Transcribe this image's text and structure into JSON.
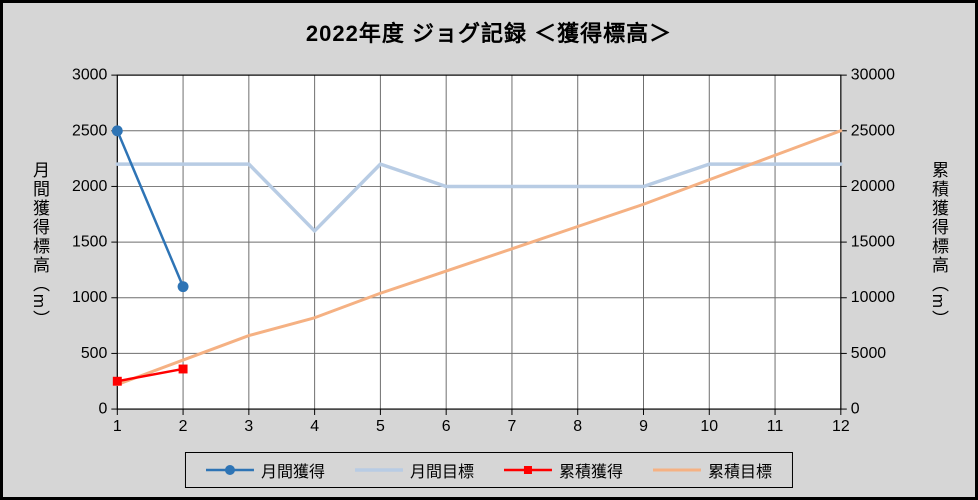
{
  "window": {
    "background": "#D6D6D6",
    "plot_background": "#FFFFFF",
    "border_color": "#000000"
  },
  "chart_data": {
    "type": "line",
    "title": "2022年度  ジョグ記録 ＜獲得標高＞",
    "x": [
      1,
      2,
      3,
      4,
      5,
      6,
      7,
      8,
      9,
      10,
      11,
      12
    ],
    "left_axis": {
      "label": "月間獲得標高（m）",
      "min": 0,
      "max": 3000,
      "step": 500
    },
    "right_axis": {
      "label": "累積獲得標高（m）",
      "min": 0,
      "max": 30000,
      "step": 5000
    },
    "grid": true,
    "legend_position": "bottom",
    "series": [
      {
        "id": "monthly-actual",
        "name": "月間獲得",
        "axis": "left",
        "color": "#2E74B5",
        "marker": "circle",
        "stroke_width": 2.5,
        "values": [
          2500,
          1100,
          null,
          null,
          null,
          null,
          null,
          null,
          null,
          null,
          null,
          null
        ]
      },
      {
        "id": "monthly-target",
        "name": "月間目標",
        "axis": "left",
        "color": "#B8CCE4",
        "marker": "none",
        "stroke_width": 3.5,
        "values": [
          2200,
          2200,
          2200,
          1600,
          2200,
          2000,
          2000,
          2000,
          2000,
          2200,
          2200,
          2200
        ]
      },
      {
        "id": "cumulative-actual",
        "name": "累積獲得",
        "axis": "right",
        "color": "#FF0000",
        "marker": "square",
        "stroke_width": 2.5,
        "values": [
          2500,
          3600,
          null,
          null,
          null,
          null,
          null,
          null,
          null,
          null,
          null,
          null
        ]
      },
      {
        "id": "cumulative-target",
        "name": "累積目標",
        "axis": "right",
        "color": "#F5B183",
        "marker": "none",
        "stroke_width": 3,
        "values": [
          2200,
          4400,
          6600,
          8200,
          10400,
          12400,
          14400,
          16400,
          18400,
          20600,
          22800,
          25000
        ]
      }
    ]
  }
}
